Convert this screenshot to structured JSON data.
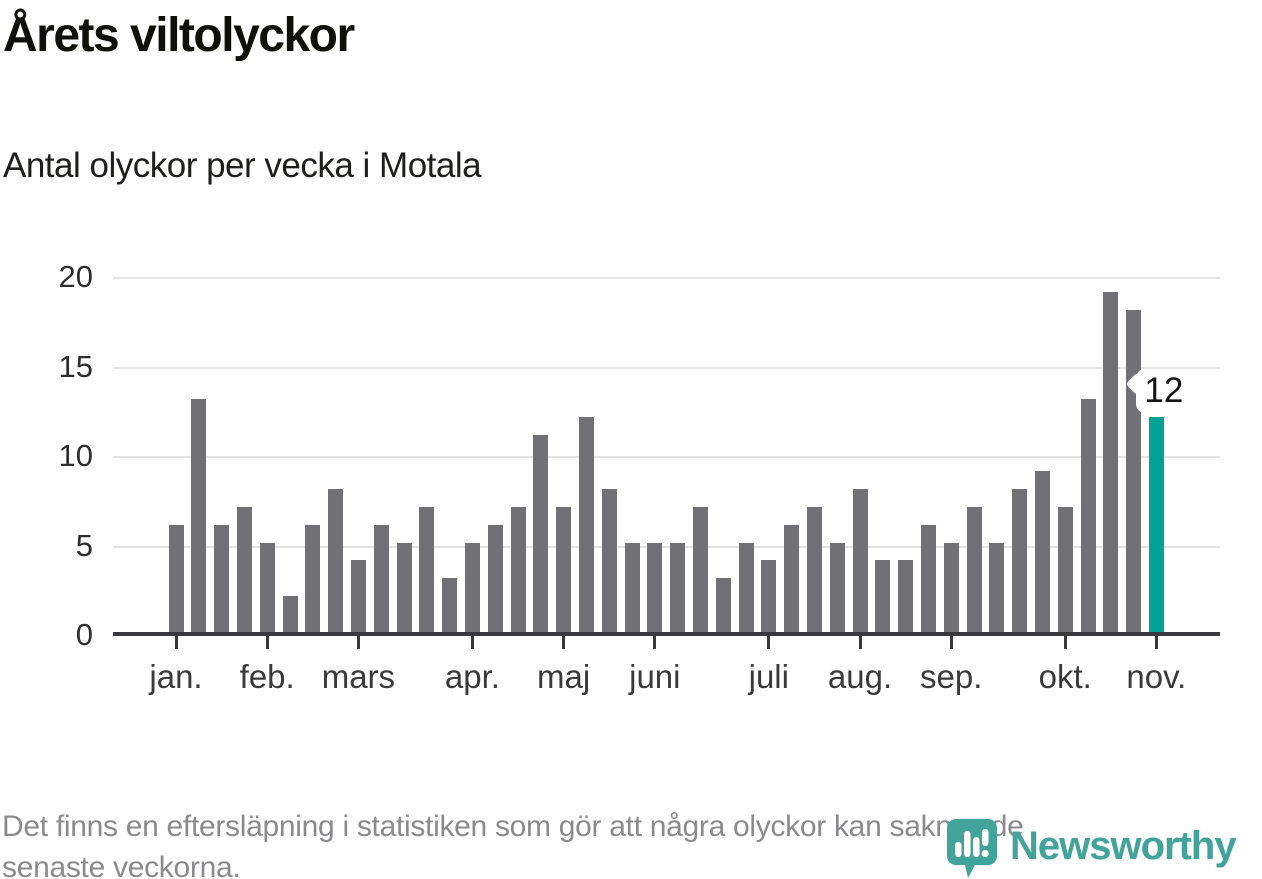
{
  "page": {
    "title": "Årets viltolyckor",
    "subtitle": "Antal olyckor per vecka i Motala",
    "footnote_line1": "Det finns en eftersläpning i statistiken som gör att några olyckor kan saknas de",
    "footnote_line2": "senaste veckorna."
  },
  "branding": {
    "name": "Newsworthy",
    "icon": "newsworthy-pin-bar-chart-icon",
    "color": "#42a39b"
  },
  "chart_data": {
    "type": "bar",
    "title": "Årets viltolyckor",
    "subtitle": "Antal olyckor per vecka i Motala",
    "x_unit": "vecka (weekly bars, jan.–nov.)",
    "ylabel": "",
    "ylim": [
      0,
      20
    ],
    "y_ticks": [
      0,
      5,
      10,
      15,
      20
    ],
    "grid": true,
    "legend": "none",
    "bar_color": "#717175",
    "highlight_color": "#00a396",
    "axis_color": "#39393b",
    "grid_color": "#e4e4e4",
    "values": [
      6,
      13,
      6,
      7,
      5,
      2,
      6,
      8,
      4,
      6,
      5,
      7,
      3,
      5,
      6,
      7,
      11,
      7,
      12,
      8,
      5,
      5,
      5,
      7,
      3,
      5,
      4,
      6,
      7,
      5,
      8,
      4,
      4,
      6,
      5,
      7,
      5,
      8,
      9,
      7,
      13,
      19,
      18,
      12
    ],
    "highlight_index": 43,
    "highlight_label": "12",
    "month_ticks": [
      {
        "label": "jan.",
        "week_index": 0
      },
      {
        "label": "feb.",
        "week_index": 4
      },
      {
        "label": "mars",
        "week_index": 8
      },
      {
        "label": "apr.",
        "week_index": 13
      },
      {
        "label": "maj",
        "week_index": 17
      },
      {
        "label": "juni",
        "week_index": 21
      },
      {
        "label": "juli",
        "week_index": 26
      },
      {
        "label": "aug.",
        "week_index": 30
      },
      {
        "label": "sep.",
        "week_index": 34
      },
      {
        "label": "okt.",
        "week_index": 39
      },
      {
        "label": "nov.",
        "week_index": 43
      }
    ]
  }
}
